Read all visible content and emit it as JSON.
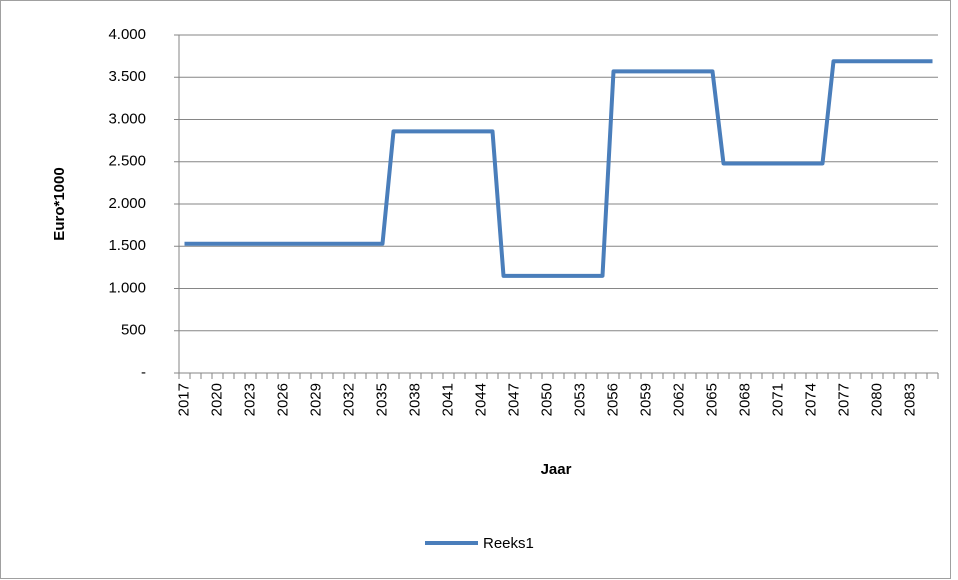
{
  "chart_data": {
    "type": "line",
    "y_label": "Euro*1000",
    "x_label": "Jaar",
    "categories": [
      "2017",
      null,
      null,
      "2020",
      null,
      null,
      "2023",
      null,
      null,
      "2026",
      null,
      null,
      "2029",
      null,
      null,
      "2032",
      null,
      null,
      "2035",
      null,
      null,
      "2038",
      null,
      null,
      "2041",
      null,
      null,
      "2044",
      null,
      null,
      "2047",
      null,
      null,
      "2050",
      null,
      null,
      "2053",
      null,
      null,
      "2056",
      null,
      null,
      "2059",
      null,
      null,
      "2062",
      null,
      null,
      "2065",
      null,
      null,
      "2068",
      null,
      null,
      "2071",
      null,
      null,
      "2074",
      null,
      null,
      "2077",
      null,
      null,
      "2080",
      null,
      null,
      "2083",
      null,
      null
    ],
    "series": [
      {
        "name": "Reeks1",
        "color": "#4a7ebb",
        "values": [
          1530,
          1530,
          1530,
          1530,
          1530,
          1530,
          1530,
          1530,
          1530,
          1530,
          1530,
          1530,
          1530,
          1530,
          1530,
          1530,
          1530,
          1530,
          1530,
          2860,
          2860,
          2860,
          2860,
          2860,
          2860,
          2860,
          2860,
          2860,
          2860,
          1150,
          1150,
          1150,
          1150,
          1150,
          1150,
          1150,
          1150,
          1150,
          1150,
          3570,
          3570,
          3570,
          3570,
          3570,
          3570,
          3570,
          3570,
          3570,
          3570,
          2480,
          2480,
          2480,
          2480,
          2480,
          2480,
          2480,
          2480,
          2480,
          2480,
          3690,
          3690,
          3690,
          3690,
          3690,
          3690,
          3690,
          3690,
          3690,
          3690
        ]
      }
    ],
    "ylim": [
      0,
      4000
    ],
    "yticks": [
      {
        "value": 0,
        "label": "-"
      },
      500,
      {
        "value": 1000,
        "label": "1.000"
      },
      {
        "value": 1500,
        "label": "1.500"
      },
      {
        "value": 2000,
        "label": "2.000"
      },
      {
        "value": 2500,
        "label": "2.500"
      },
      {
        "value": 3000,
        "label": "3.000"
      },
      {
        "value": 3500,
        "label": "3.500"
      },
      {
        "value": 4000,
        "label": "4.000"
      }
    ],
    "grid": true,
    "legend": "bottom"
  }
}
